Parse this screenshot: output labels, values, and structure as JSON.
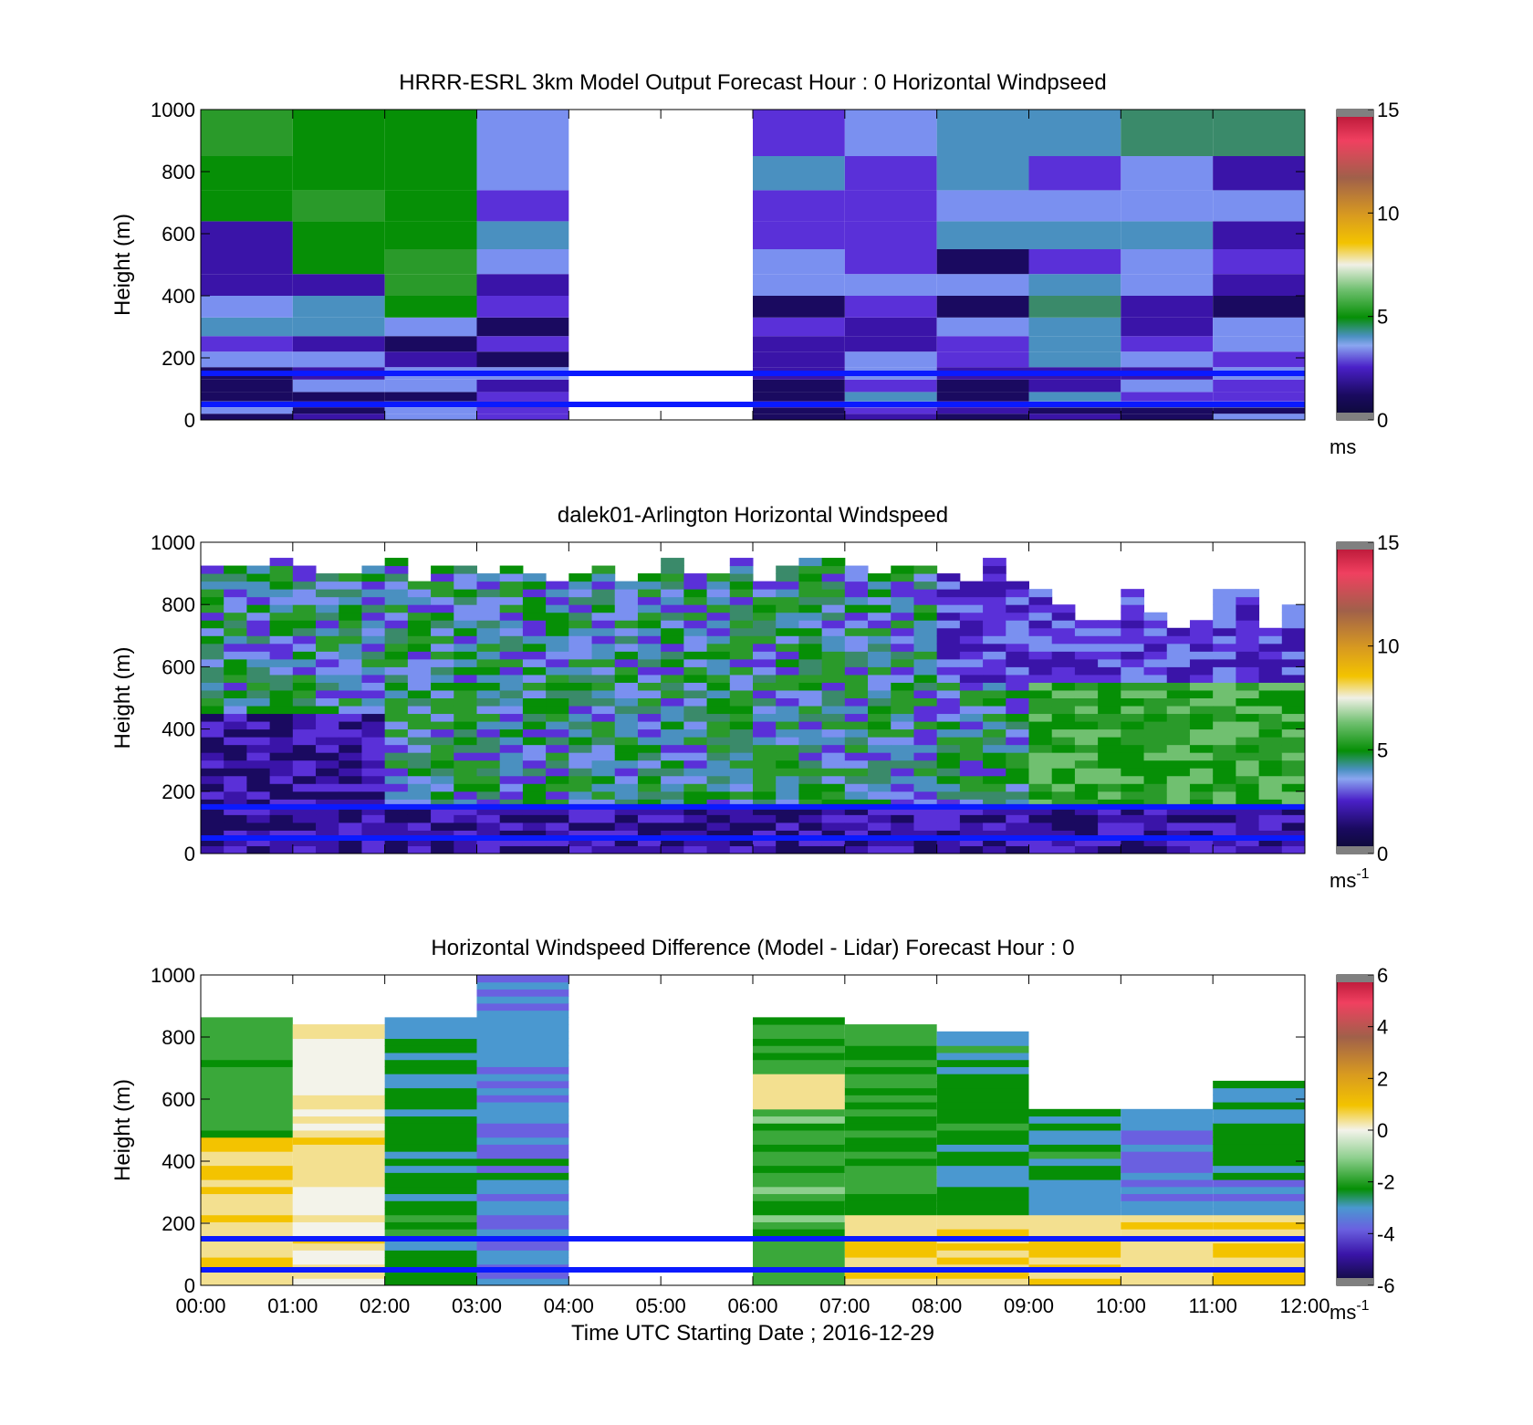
{
  "chart_data": [
    {
      "type": "heatmap",
      "title": "HRRR-ESRL 3km Model Output   Forecast Hour : 0 Horizontal Windpseed",
      "ylabel": "Height (m)",
      "ylim": [
        0,
        1000
      ],
      "yticks": [
        "0",
        "200",
        "400",
        "600",
        "800",
        "1000"
      ],
      "x_hours": [
        0,
        12
      ],
      "colorbar": {
        "ticks": [
          "0",
          "5",
          "10",
          "15"
        ],
        "range": [
          0,
          15
        ],
        "unit": "ms",
        "unit_sup": ""
      },
      "overlay_lines_m": [
        150,
        50
      ],
      "no_data_hours": [
        [
          4,
          6
        ]
      ],
      "cells": "hourly columns, blue-purple low speeds, green 4-6 m/s aloft in hours 0-2"
    },
    {
      "type": "heatmap",
      "title": "dalek01-Arlington  Horizontal Windspeed",
      "ylabel": "Height (m)",
      "ylim": [
        0,
        1000
      ],
      "yticks": [
        "0",
        "200",
        "400",
        "600",
        "800",
        "1000"
      ],
      "x_hours": [
        0,
        12
      ],
      "colorbar": {
        "ticks": [
          "0",
          "5",
          "10",
          "15"
        ],
        "range": [
          0,
          15
        ],
        "unit": "ms",
        "unit_sup": "-1"
      },
      "overlay_lines_m": [
        150,
        50
      ]
    },
    {
      "type": "heatmap",
      "title": "Horizontal Windspeed Difference (Model - Lidar) Forecast Hour : 0",
      "ylabel": "Height (m)",
      "xlabel": "Time UTC  Starting Date ; 2016-12-29",
      "ylim": [
        0,
        1000
      ],
      "yticks": [
        "0",
        "200",
        "400",
        "600",
        "800",
        "1000"
      ],
      "xticks": [
        "00:00",
        "01:00",
        "02:00",
        "03:00",
        "04:00",
        "05:00",
        "06:00",
        "07:00",
        "08:00",
        "09:00",
        "10:00",
        "11:00",
        "12:00"
      ],
      "x_hours": [
        0,
        12
      ],
      "colorbar": {
        "ticks": [
          "-6",
          "-4",
          "-2",
          "0",
          "2",
          "4",
          "6"
        ],
        "range": [
          -6,
          6
        ],
        "unit": "ms",
        "unit_sup": "-1"
      },
      "overlay_lines_m": [
        150,
        50
      ],
      "no_data_hours": [
        [
          4,
          6
        ]
      ]
    }
  ]
}
